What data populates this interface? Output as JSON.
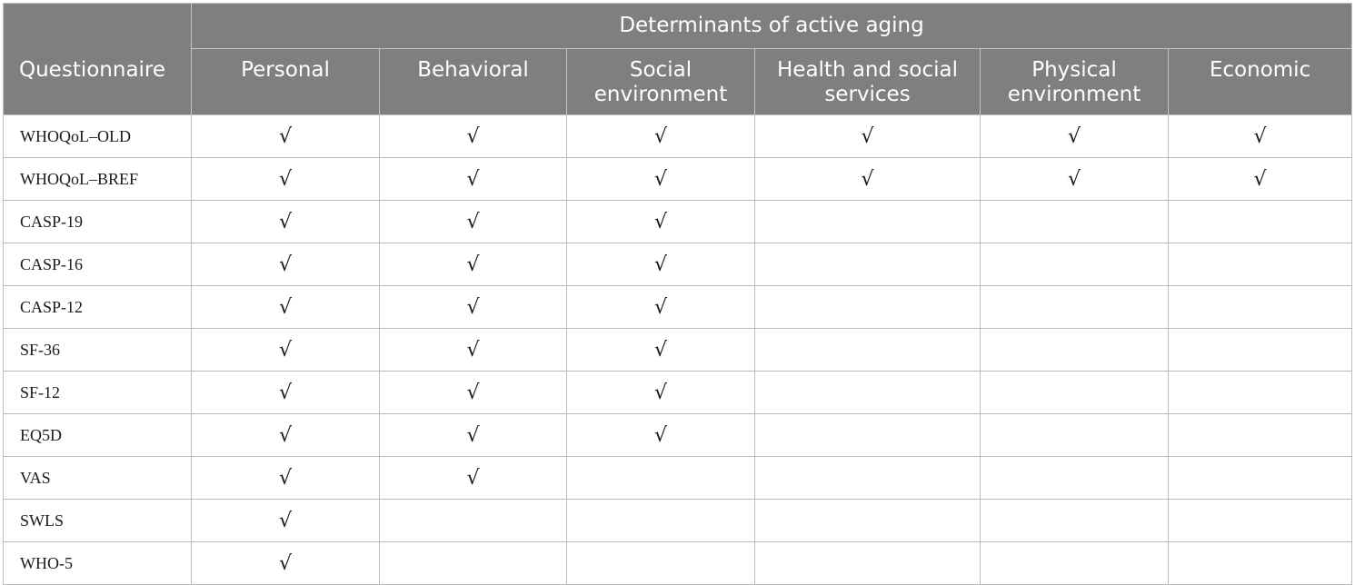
{
  "table": {
    "group_header": "Determinants of active aging",
    "columns": [
      "Questionnaire",
      "Personal",
      "Behavioral",
      "Social environment",
      "Health and social services",
      "Physical environment",
      "Economic"
    ],
    "check_mark": "√",
    "rows": [
      {
        "name": "WHOQoL–OLD",
        "marks": [
          true,
          true,
          true,
          true,
          true,
          true
        ]
      },
      {
        "name": "WHOQoL–BREF",
        "marks": [
          true,
          true,
          true,
          true,
          true,
          true
        ]
      },
      {
        "name": "CASP-19",
        "marks": [
          true,
          true,
          true,
          false,
          false,
          false
        ]
      },
      {
        "name": "CASP-16",
        "marks": [
          true,
          true,
          true,
          false,
          false,
          false
        ]
      },
      {
        "name": "CASP-12",
        "marks": [
          true,
          true,
          true,
          false,
          false,
          false
        ]
      },
      {
        "name": "SF-36",
        "marks": [
          true,
          true,
          true,
          false,
          false,
          false
        ]
      },
      {
        "name": "SF-12",
        "marks": [
          true,
          true,
          true,
          false,
          false,
          false
        ]
      },
      {
        "name": "EQ5D",
        "marks": [
          true,
          true,
          true,
          false,
          false,
          false
        ]
      },
      {
        "name": "VAS",
        "marks": [
          true,
          true,
          false,
          false,
          false,
          false
        ]
      },
      {
        "name": "SWLS",
        "marks": [
          true,
          false,
          false,
          false,
          false,
          false
        ]
      },
      {
        "name": "WHO-5",
        "marks": [
          true,
          false,
          false,
          false,
          false,
          false
        ]
      }
    ]
  }
}
